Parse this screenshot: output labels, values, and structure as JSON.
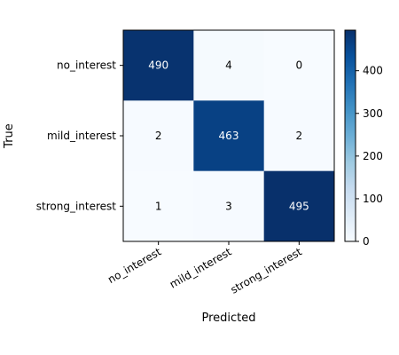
{
  "chart_data": {
    "type": "heatmap",
    "title": "",
    "xlabel": "Predicted",
    "ylabel": "True",
    "x_categories": [
      "no_interest",
      "mild_interest",
      "strong_interest"
    ],
    "y_categories": [
      "no_interest",
      "mild_interest",
      "strong_interest"
    ],
    "values": [
      [
        490,
        4,
        0
      ],
      [
        2,
        463,
        2
      ],
      [
        1,
        3,
        495
      ]
    ],
    "colorbar": {
      "range": [
        0,
        495
      ],
      "ticks": [
        "0",
        "100",
        "200",
        "300",
        "400"
      ],
      "colormap": "Blues"
    },
    "grid": false
  }
}
